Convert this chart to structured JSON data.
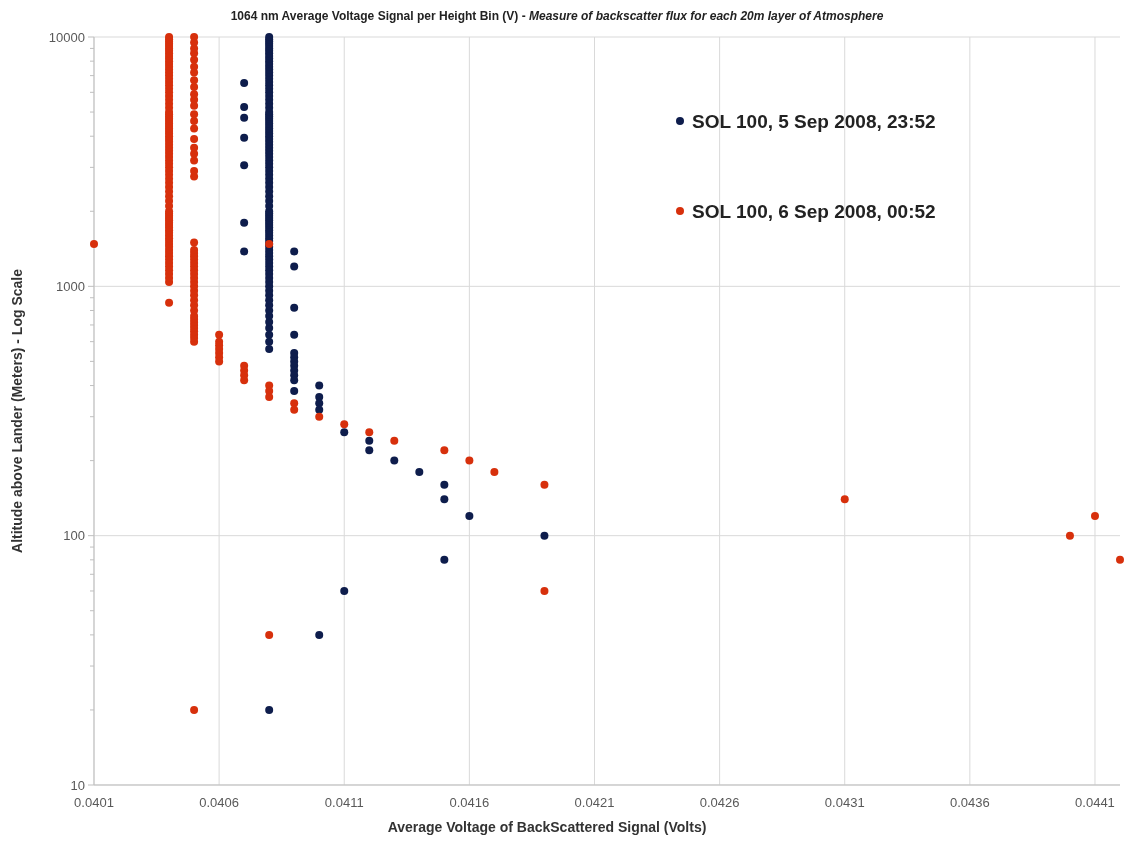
{
  "chart_data": {
    "type": "scatter",
    "title": "1064 nm Average Voltage Signal per Height Bin (V) -",
    "subtitle": "Measure of backscatter flux for each 20m layer of Atmosphere",
    "xlabel": "Average Voltage of BackScattered Signal (Volts)",
    "ylabel": "Altitude above Lander (Meters) - Log Scale",
    "log": "y",
    "grid": true,
    "legend": "top right",
    "marker": "circle",
    "xlim": [
      0.0401,
      0.0442
    ],
    "xticks": [
      0.0401,
      0.0406,
      0.0411,
      0.0416,
      0.0421,
      0.0426,
      0.0431,
      0.0436,
      0.0441
    ],
    "ylim": [
      10,
      10000
    ],
    "yticks": [
      10,
      {
        "value": 20,
        "label": null
      },
      {
        "value": 30,
        "label": null
      },
      {
        "value": 40,
        "label": null
      },
      {
        "value": 50,
        "label": null
      },
      {
        "value": 60,
        "label": null
      },
      {
        "value": 70,
        "label": null
      },
      {
        "value": 80,
        "label": null
      },
      {
        "value": 90,
        "label": null
      },
      100,
      {
        "value": 200,
        "label": null
      },
      {
        "value": 300,
        "label": null
      },
      {
        "value": 400,
        "label": null
      },
      {
        "value": 500,
        "label": null
      },
      {
        "value": 600,
        "label": null
      },
      {
        "value": 700,
        "label": null
      },
      {
        "value": 800,
        "label": null
      },
      {
        "value": 900,
        "label": null
      },
      1000,
      {
        "value": 2000,
        "label": null
      },
      {
        "value": 3000,
        "label": null
      },
      {
        "value": 4000,
        "label": null
      },
      {
        "value": 5000,
        "label": null
      },
      {
        "value": 6000,
        "label": null
      },
      {
        "value": 7000,
        "label": null
      },
      {
        "value": 8000,
        "label": null
      },
      {
        "value": 9000,
        "label": null
      },
      10000
    ],
    "series": [
      {
        "name": "SOL 100, 5 Sep 2008, 23:52",
        "color": "#0e1d4c",
        "x": [
          0.0407,
          0.0407,
          0.0407,
          0.0407,
          0.0407,
          0.0407,
          0.0407,
          0.0408,
          0.0408,
          0.0408,
          0.0408,
          0.0408,
          0.0408,
          0.0408,
          0.0408,
          0.0408,
          0.0408,
          0.0408,
          0.0408,
          0.0408,
          0.0408,
          0.0408,
          0.0408,
          0.0408,
          0.0408,
          0.0408,
          0.0408,
          0.0408,
          0.0408,
          0.0408,
          0.0408,
          0.0408,
          0.0408,
          0.0408,
          0.0408,
          0.0408,
          0.0408,
          0.0408,
          0.0408,
          0.0408,
          0.0408,
          0.0408,
          0.0408,
          0.0408,
          0.0408,
          0.0408,
          0.0408,
          0.0408,
          0.0408,
          0.0408,
          0.0408,
          0.0408,
          0.0408,
          0.0408,
          0.0408,
          0.0408,
          0.0408,
          0.0408,
          0.0408,
          0.0408,
          0.0408,
          0.0408,
          0.0408,
          0.0408,
          0.0408,
          0.0408,
          0.0408,
          0.0408,
          0.0408,
          0.0408,
          0.0408,
          0.0408,
          0.0408,
          0.0408,
          0.0408,
          0.0408,
          0.0408,
          0.0408,
          0.0408,
          0.0408,
          0.0408,
          0.0408,
          0.0408,
          0.0408,
          0.0408,
          0.0408,
          0.0408,
          0.0408,
          0.0408,
          0.0408,
          0.0408,
          0.0408,
          0.0408,
          0.0408,
          0.0408,
          0.0408,
          0.0408,
          0.0408,
          0.0408,
          0.0408,
          0.0409,
          0.0409,
          0.0409,
          0.0409,
          0.0409,
          0.0409,
          0.0409,
          0.0409,
          0.0409,
          0.0409,
          0.0409,
          0.0409,
          0.041,
          0.041,
          0.041,
          0.041,
          0.041,
          0.0411,
          0.0411,
          0.0412,
          0.0412,
          0.0413,
          0.0414,
          0.0415,
          0.0415,
          0.0415,
          0.0416,
          0.0419
        ],
        "values": [
          6540,
          5240,
          4740,
          3940,
          3060,
          1800,
          1380,
          20,
          560,
          600,
          640,
          680,
          720,
          760,
          800,
          840,
          880,
          920,
          960,
          1000,
          1040,
          1080,
          1120,
          1160,
          1200,
          1240,
          1280,
          1320,
          1360,
          1400,
          1440,
          1480,
          1520,
          1560,
          1600,
          1640,
          1680,
          1720,
          1760,
          1800,
          1840,
          1880,
          1920,
          1960,
          2000,
          2100,
          2200,
          2300,
          2400,
          2500,
          2600,
          2700,
          2800,
          2900,
          3000,
          3100,
          3200,
          3300,
          3400,
          3500,
          3600,
          3700,
          3800,
          3900,
          4000,
          4100,
          4200,
          4300,
          4400,
          4500,
          4600,
          4700,
          4800,
          4900,
          5000,
          5200,
          5400,
          5600,
          5800,
          6000,
          6200,
          6400,
          6600,
          6800,
          7000,
          7200,
          7400,
          7600,
          7800,
          8000,
          8200,
          8400,
          8600,
          8800,
          9000,
          9200,
          9400,
          9600,
          9800,
          10000,
          1380,
          1200,
          820,
          640,
          540,
          520,
          500,
          480,
          460,
          440,
          420,
          380,
          400,
          360,
          340,
          320,
          40,
          260,
          60,
          240,
          220,
          200,
          180,
          160,
          140,
          80,
          120,
          100
        ]
      },
      {
        "name": "SOL 100, 6 Sep 2008, 00:52",
        "color": "#d7300c",
        "x": [
          0.0401,
          0.0404,
          0.0404,
          0.0404,
          0.0404,
          0.0404,
          0.0404,
          0.0404,
          0.0404,
          0.0404,
          0.0404,
          0.0404,
          0.0404,
          0.0404,
          0.0404,
          0.0404,
          0.0404,
          0.0404,
          0.0404,
          0.0404,
          0.0404,
          0.0404,
          0.0404,
          0.0404,
          0.0404,
          0.0404,
          0.0404,
          0.0404,
          0.0404,
          0.0404,
          0.0404,
          0.0404,
          0.0404,
          0.0404,
          0.0404,
          0.0404,
          0.0404,
          0.0404,
          0.0404,
          0.0404,
          0.0404,
          0.0404,
          0.0404,
          0.0404,
          0.0404,
          0.0404,
          0.0404,
          0.0404,
          0.0404,
          0.0404,
          0.0404,
          0.0404,
          0.0404,
          0.0404,
          0.0404,
          0.0404,
          0.0404,
          0.0404,
          0.0404,
          0.0404,
          0.0404,
          0.0404,
          0.0404,
          0.0404,
          0.0404,
          0.0404,
          0.0404,
          0.0404,
          0.0404,
          0.0404,
          0.0404,
          0.0404,
          0.0404,
          0.0404,
          0.0404,
          0.0404,
          0.0404,
          0.0404,
          0.0404,
          0.0404,
          0.0404,
          0.0404,
          0.0405,
          0.0405,
          0.0405,
          0.0405,
          0.0405,
          0.0405,
          0.0405,
          0.0405,
          0.0405,
          0.0405,
          0.0405,
          0.0405,
          0.0405,
          0.0405,
          0.0405,
          0.0405,
          0.0405,
          0.0405,
          0.0405,
          0.0405,
          0.0405,
          0.0405,
          0.0405,
          0.0405,
          0.0405,
          0.0405,
          0.0405,
          0.0405,
          0.0405,
          0.0405,
          0.0405,
          0.0405,
          0.0405,
          0.0405,
          0.0405,
          0.0405,
          0.0405,
          0.0405,
          0.0405,
          0.0405,
          0.0405,
          0.0405,
          0.0405,
          0.0405,
          0.0405,
          0.0405,
          0.0405,
          0.0405,
          0.0406,
          0.0406,
          0.0406,
          0.0406,
          0.0406,
          0.0406,
          0.0406,
          0.0407,
          0.0407,
          0.0407,
          0.0407,
          0.0408,
          0.0408,
          0.0408,
          0.0408,
          0.0408,
          0.0409,
          0.0409,
          0.041,
          0.0411,
          0.0412,
          0.0413,
          0.0415,
          0.0416,
          0.0417,
          0.0419,
          0.0419,
          0.0431,
          0.044,
          0.0441,
          0.0442
        ],
        "values": [
          1480,
          860,
          1040,
          1080,
          1120,
          1160,
          1200,
          1240,
          1280,
          1320,
          1360,
          1400,
          1440,
          1480,
          1520,
          1560,
          1600,
          1640,
          1680,
          1720,
          1760,
          1800,
          1840,
          1880,
          1920,
          1960,
          2000,
          2100,
          2200,
          2300,
          2400,
          2500,
          2600,
          2700,
          2800,
          2900,
          3000,
          3100,
          3200,
          3300,
          3400,
          3500,
          3600,
          3700,
          3800,
          3900,
          4000,
          4100,
          4200,
          4300,
          4400,
          4500,
          4600,
          4700,
          4800,
          4900,
          5000,
          5200,
          5400,
          5600,
          5800,
          6000,
          6200,
          6400,
          6600,
          6800,
          7000,
          7200,
          7400,
          7600,
          7800,
          8000,
          8200,
          8400,
          8600,
          8800,
          9000,
          9200,
          9400,
          9600,
          9800,
          10000,
          600,
          620,
          640,
          660,
          680,
          700,
          720,
          740,
          760,
          800,
          840,
          880,
          920,
          960,
          1000,
          1040,
          1080,
          1120,
          1160,
          1200,
          1240,
          1280,
          1320,
          1360,
          1400,
          1500,
          2760,
          2900,
          3200,
          3400,
          3600,
          3900,
          4300,
          4600,
          4900,
          5300,
          5600,
          5900,
          6300,
          6700,
          7200,
          7600,
          8100,
          8600,
          9000,
          9500,
          10000,
          20,
          640,
          600,
          580,
          560,
          540,
          520,
          500,
          480,
          460,
          440,
          420,
          400,
          380,
          360,
          1480,
          40,
          340,
          320,
          300,
          280,
          260,
          240,
          220,
          200,
          180,
          160,
          60,
          140,
          100,
          120,
          80
        ]
      }
    ]
  }
}
